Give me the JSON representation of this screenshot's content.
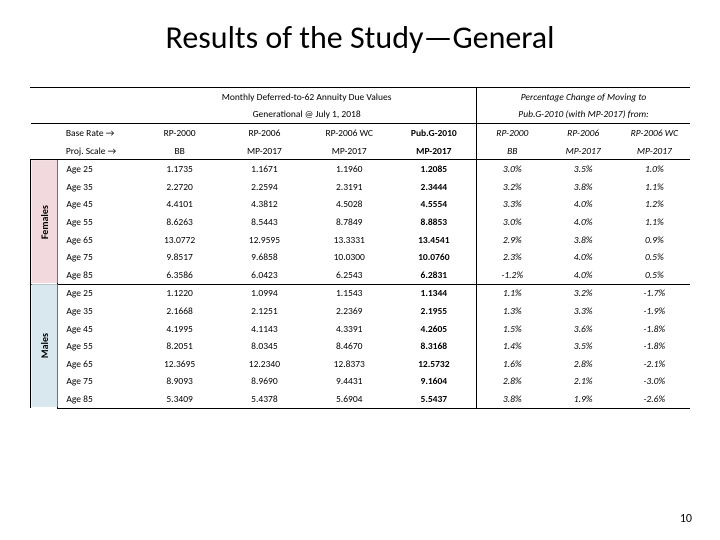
{
  "title": "Results of the Study—General",
  "page_number": "10",
  "colors": {
    "females_bg": "#f2d9de",
    "males_bg": "#d9e8ef",
    "border": "#000000",
    "text": "#000000",
    "background": "#ffffff"
  },
  "typography": {
    "title_fontsize": 32,
    "table_fontsize": 9.5,
    "font_family": "Calibri"
  },
  "table": {
    "header_sections": {
      "left_title_line1": "Monthly Deferred-to-62 Annuity Due Values",
      "left_title_line2": "Generational @ July 1, 2018",
      "right_title_line1": "Percentage Change of Moving to",
      "right_title_line2": "Pub.G-2010 (with MP-2017) from:"
    },
    "base_rate_label": "Base Rate →",
    "proj_scale_label": "Proj. Scale →",
    "base_rate": [
      "RP-2000",
      "RP-2006",
      "RP-2006 WC",
      "Pub.G-2010",
      "RP-2000",
      "RP-2006",
      "RP-2006 WC"
    ],
    "proj_scale": [
      "BB",
      "MP-2017",
      "MP-2017",
      "MP-2017",
      "BB",
      "MP-2017",
      "MP-2017"
    ],
    "bold_col_index": 3,
    "groups": [
      {
        "label": "Females",
        "css": "females",
        "rows": [
          {
            "age": "Age 25",
            "vals": [
              "1.1735",
              "1.1671",
              "1.1960",
              "1.2085"
            ],
            "pcts": [
              "3.0%",
              "3.5%",
              "1.0%"
            ]
          },
          {
            "age": "Age 35",
            "vals": [
              "2.2720",
              "2.2594",
              "2.3191",
              "2.3444"
            ],
            "pcts": [
              "3.2%",
              "3.8%",
              "1.1%"
            ]
          },
          {
            "age": "Age 45",
            "vals": [
              "4.4101",
              "4.3812",
              "4.5028",
              "4.5554"
            ],
            "pcts": [
              "3.3%",
              "4.0%",
              "1.2%"
            ]
          },
          {
            "age": "Age 55",
            "vals": [
              "8.6263",
              "8.5443",
              "8.7849",
              "8.8853"
            ],
            "pcts": [
              "3.0%",
              "4.0%",
              "1.1%"
            ]
          },
          {
            "age": "Age 65",
            "vals": [
              "13.0772",
              "12.9595",
              "13.3331",
              "13.4541"
            ],
            "pcts": [
              "2.9%",
              "3.8%",
              "0.9%"
            ]
          },
          {
            "age": "Age 75",
            "vals": [
              "9.8517",
              "9.6858",
              "10.0300",
              "10.0760"
            ],
            "pcts": [
              "2.3%",
              "4.0%",
              "0.5%"
            ]
          },
          {
            "age": "Age 85",
            "vals": [
              "6.3586",
              "6.0423",
              "6.2543",
              "6.2831"
            ],
            "pcts": [
              "-1.2%",
              "4.0%",
              "0.5%"
            ]
          }
        ]
      },
      {
        "label": "Males",
        "css": "males",
        "rows": [
          {
            "age": "Age 25",
            "vals": [
              "1.1220",
              "1.0994",
              "1.1543",
              "1.1344"
            ],
            "pcts": [
              "1.1%",
              "3.2%",
              "-1.7%"
            ]
          },
          {
            "age": "Age 35",
            "vals": [
              "2.1668",
              "2.1251",
              "2.2369",
              "2.1955"
            ],
            "pcts": [
              "1.3%",
              "3.3%",
              "-1.9%"
            ]
          },
          {
            "age": "Age 45",
            "vals": [
              "4.1995",
              "4.1143",
              "4.3391",
              "4.2605"
            ],
            "pcts": [
              "1.5%",
              "3.6%",
              "-1.8%"
            ]
          },
          {
            "age": "Age 55",
            "vals": [
              "8.2051",
              "8.0345",
              "8.4670",
              "8.3168"
            ],
            "pcts": [
              "1.4%",
              "3.5%",
              "-1.8%"
            ]
          },
          {
            "age": "Age 65",
            "vals": [
              "12.3695",
              "12.2340",
              "12.8373",
              "12.5732"
            ],
            "pcts": [
              "1.6%",
              "2.8%",
              "-2.1%"
            ]
          },
          {
            "age": "Age 75",
            "vals": [
              "8.9093",
              "8.9690",
              "9.4431",
              "9.1604"
            ],
            "pcts": [
              "2.8%",
              "2.1%",
              "-3.0%"
            ]
          },
          {
            "age": "Age 85",
            "vals": [
              "5.3409",
              "5.4378",
              "5.6904",
              "5.5437"
            ],
            "pcts": [
              "3.8%",
              "1.9%",
              "-2.6%"
            ]
          }
        ]
      }
    ]
  }
}
